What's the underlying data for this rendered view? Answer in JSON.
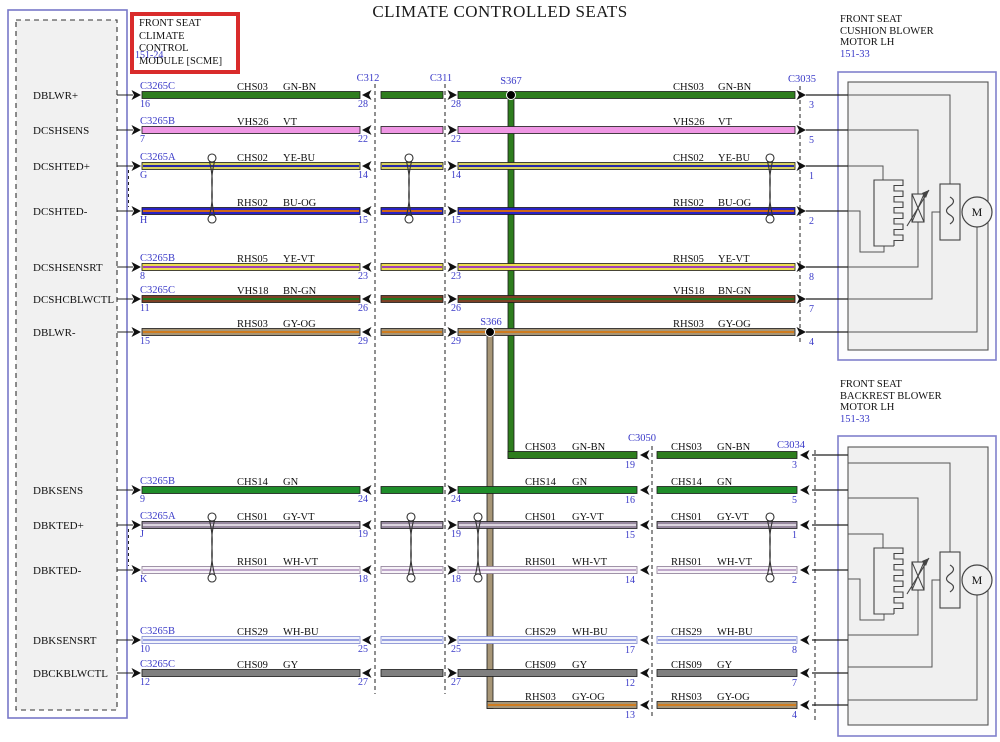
{
  "title": "CLIMATE CONTROLLED SEATS",
  "module": {
    "name_lines": [
      "FRONT SEAT",
      "CLIMATE CONTROL",
      "MODULE [SCME]"
    ],
    "page_ref": "151-24",
    "callout_color": "#d92b2b"
  },
  "motor_top": {
    "name_lines": [
      "FRONT SEAT",
      "CUSHION BLOWER",
      "MOTOR LH"
    ],
    "page_ref": "151-33"
  },
  "motor_bottom": {
    "name_lines": [
      "FRONT SEAT",
      "BACKREST BLOWER",
      "MOTOR LH"
    ],
    "page_ref": "151-33"
  },
  "connector_labels": {
    "c312": "C312",
    "c311": "C311",
    "s367": "S367",
    "s366": "S366",
    "c3035": "C3035",
    "c3050": "C3050",
    "c3034": "C3034"
  },
  "upper_rows": [
    {
      "module_label": "DBLWR+",
      "conn": "C3265C",
      "conn_pin": "16",
      "circuit": "CHS03",
      "code": "GN-BN",
      "c312_pin": "28",
      "c311_pin": "28",
      "c3035_pin": "3",
      "color": "GN-BN"
    },
    {
      "module_label": "DCSHSENS",
      "conn": "C3265B",
      "conn_pin": "7",
      "circuit": "VHS26",
      "code": "VT",
      "c312_pin": "22",
      "c311_pin": "22",
      "c3035_pin": "5",
      "color": "VT"
    },
    {
      "module_label": "DCSHTED+",
      "conn": "C3265A",
      "conn_pin": "G",
      "circuit": "CHS02",
      "code": "YE-BU",
      "c312_pin": "14",
      "c311_pin": "14",
      "c3035_pin": "1",
      "color": "YE-BU",
      "twisted_with_next": true
    },
    {
      "module_label": "DCSHTED-",
      "conn": "",
      "conn_pin": "H",
      "circuit": "RHS02",
      "code": "BU-OG",
      "c312_pin": "15",
      "c311_pin": "15",
      "c3035_pin": "2",
      "color": "BU-OG"
    },
    {
      "module_label": "DCSHSENSRT",
      "conn": "C3265B",
      "conn_pin": "8",
      "circuit": "RHS05",
      "code": "YE-VT",
      "c312_pin": "23",
      "c311_pin": "23",
      "c3035_pin": "8",
      "color": "YE-VT"
    },
    {
      "module_label": "DCSHCBLWCTL",
      "conn": "C3265C",
      "conn_pin": "11",
      "circuit": "VHS18",
      "code": "BN-GN",
      "c312_pin": "26",
      "c311_pin": "26",
      "c3035_pin": "7",
      "color": "BN-GN"
    },
    {
      "module_label": "DBLWR-",
      "conn": "",
      "conn_pin": "15",
      "circuit": "RHS03",
      "code": "GY-OG",
      "c312_pin": "29",
      "c311_pin": "29",
      "c3035_pin": "4",
      "color": "GY-OG"
    }
  ],
  "lower_rows": [
    {
      "module_label": "DBKSENS",
      "conn": "C3265B",
      "conn_pin": "9",
      "circuit": "CHS14",
      "code": "GN",
      "c312_pin": "24",
      "c311_pin": "24",
      "c3050_pin": "16",
      "c3034_pin": "5",
      "color": "GN"
    },
    {
      "module_label": "DBKTED+",
      "conn": "C3265A",
      "conn_pin": "J",
      "circuit": "CHS01",
      "code": "GY-VT",
      "c312_pin": "19",
      "c311_pin": "19",
      "c3050_pin": "15",
      "c3034_pin": "1",
      "color": "GY-VT",
      "twisted_with_next": true
    },
    {
      "module_label": "DBKTED-",
      "conn": "",
      "conn_pin": "K",
      "circuit": "RHS01",
      "code": "WH-VT",
      "c312_pin": "18",
      "c311_pin": "18",
      "c3050_pin": "14",
      "c3034_pin": "2",
      "color": "WH-VT"
    },
    {
      "module_label": "DBKSENSRT",
      "conn": "C3265B",
      "conn_pin": "10",
      "circuit": "CHS29",
      "code": "WH-BU",
      "c312_pin": "25",
      "c311_pin": "25",
      "c3050_pin": "17",
      "c3034_pin": "8",
      "color": "WH-BU"
    },
    {
      "module_label": "DBCKBLWCTL",
      "conn": "C3265C",
      "conn_pin": "12",
      "circuit": "CHS09",
      "code": "GY",
      "c312_pin": "27",
      "c311_pin": "27",
      "c3050_pin": "12",
      "c3034_pin": "7",
      "color": "GY"
    }
  ],
  "splice_rows": [
    {
      "from_splice": "S367",
      "circuit": "CHS03",
      "code": "GN-BN",
      "c3050_pin": "19",
      "c3034_pin": "3",
      "color": "GN-BN"
    },
    {
      "from_splice": "S366",
      "circuit": "RHS03",
      "code": "GY-OG",
      "c3050_pin": "13",
      "c3034_pin": "4",
      "color": "GY-OG"
    }
  ],
  "wire_colors": {
    "GN-BN": {
      "main": "#2e7d1e"
    },
    "VT": {
      "main": "#ef97e4"
    },
    "YE-BU": {
      "main": "#d8d25e",
      "stripe": "#2828a8"
    },
    "BU-OG": {
      "main": "#2a22c4",
      "stripe": "#d06818"
    },
    "YE-VT": {
      "main": "#eedc50",
      "stripe": "#a040b8"
    },
    "BN-GN": {
      "main": "#7d4126",
      "stripe": "#20781e"
    },
    "GY-OG": {
      "main": "#a79677",
      "stripe": "#cf7c20"
    },
    "GN": {
      "main": "#1f8d2a"
    },
    "GY-VT": {
      "main": "#97899f",
      "stripe": "#ddd6e0"
    },
    "WH-VT": {
      "main": "#f7f3f8",
      "stripe": "#c0a8cc",
      "border": "#8a7a94"
    },
    "WH-BU": {
      "main": "#f1f3fb",
      "stripe": "#9aa2e2",
      "border": "#7f88d0"
    },
    "GY": {
      "main": "#7f7f7f"
    }
  },
  "text_blue": "#3a3ac8",
  "motor_symbol_letter": "M"
}
